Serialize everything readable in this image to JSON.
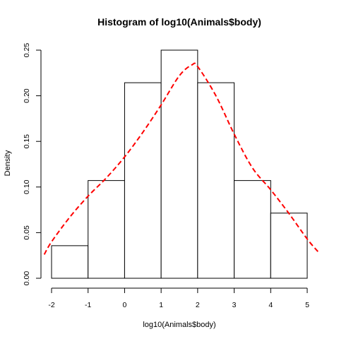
{
  "chart_data": {
    "type": "bar",
    "title": "Histogram of log10(Animals$body)",
    "xlabel": "log10(Animals$body)",
    "ylabel": "Density",
    "xlim": [
      -2,
      5
    ],
    "ylim": [
      0,
      0.25
    ],
    "x_ticks": [
      -2,
      -1,
      0,
      1,
      2,
      3,
      4,
      5
    ],
    "x_tick_labels": [
      "-2",
      "-1",
      "0",
      "1",
      "2",
      "3",
      "4",
      "5"
    ],
    "y_ticks": [
      0,
      0.05,
      0.1,
      0.15,
      0.2,
      0.25
    ],
    "y_tick_labels": [
      "0.00",
      "0.05",
      "0.10",
      "0.15",
      "0.20",
      "0.25"
    ],
    "bins": [
      {
        "from": -2,
        "to": -1,
        "density": 0.0357
      },
      {
        "from": -1,
        "to": 0,
        "density": 0.1071
      },
      {
        "from": 0,
        "to": 1,
        "density": 0.2143
      },
      {
        "from": 1,
        "to": 2,
        "density": 0.25
      },
      {
        "from": 2,
        "to": 3,
        "density": 0.2143
      },
      {
        "from": 3,
        "to": 4,
        "density": 0.1071
      },
      {
        "from": 4,
        "to": 5,
        "density": 0.0714
      }
    ],
    "density_curve": {
      "color": "#ff0000",
      "style": "dashed",
      "x": [
        -2.2,
        -2.0,
        -1.5,
        -1.0,
        -0.5,
        0.0,
        0.5,
        1.0,
        1.5,
        1.85,
        2.0,
        2.5,
        3.0,
        3.5,
        4.0,
        4.5,
        5.0,
        5.3
      ],
      "y": [
        0.026,
        0.04,
        0.067,
        0.09,
        0.11,
        0.133,
        0.16,
        0.19,
        0.222,
        0.234,
        0.232,
        0.2,
        0.158,
        0.121,
        0.097,
        0.071,
        0.043,
        0.029
      ]
    },
    "grid": false
  }
}
